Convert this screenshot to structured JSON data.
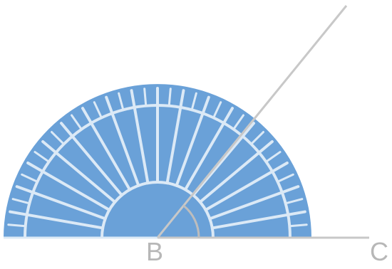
{
  "points": {
    "vertex": "B",
    "end": "C"
  },
  "colors": {
    "protractor_fill": "#6aa1d8",
    "protractor_lines": "#dbe9f6",
    "ray_line": "#c8c8c8",
    "angle_arc": "#bdbdbd",
    "label_text": "#b7b7b7"
  }
}
